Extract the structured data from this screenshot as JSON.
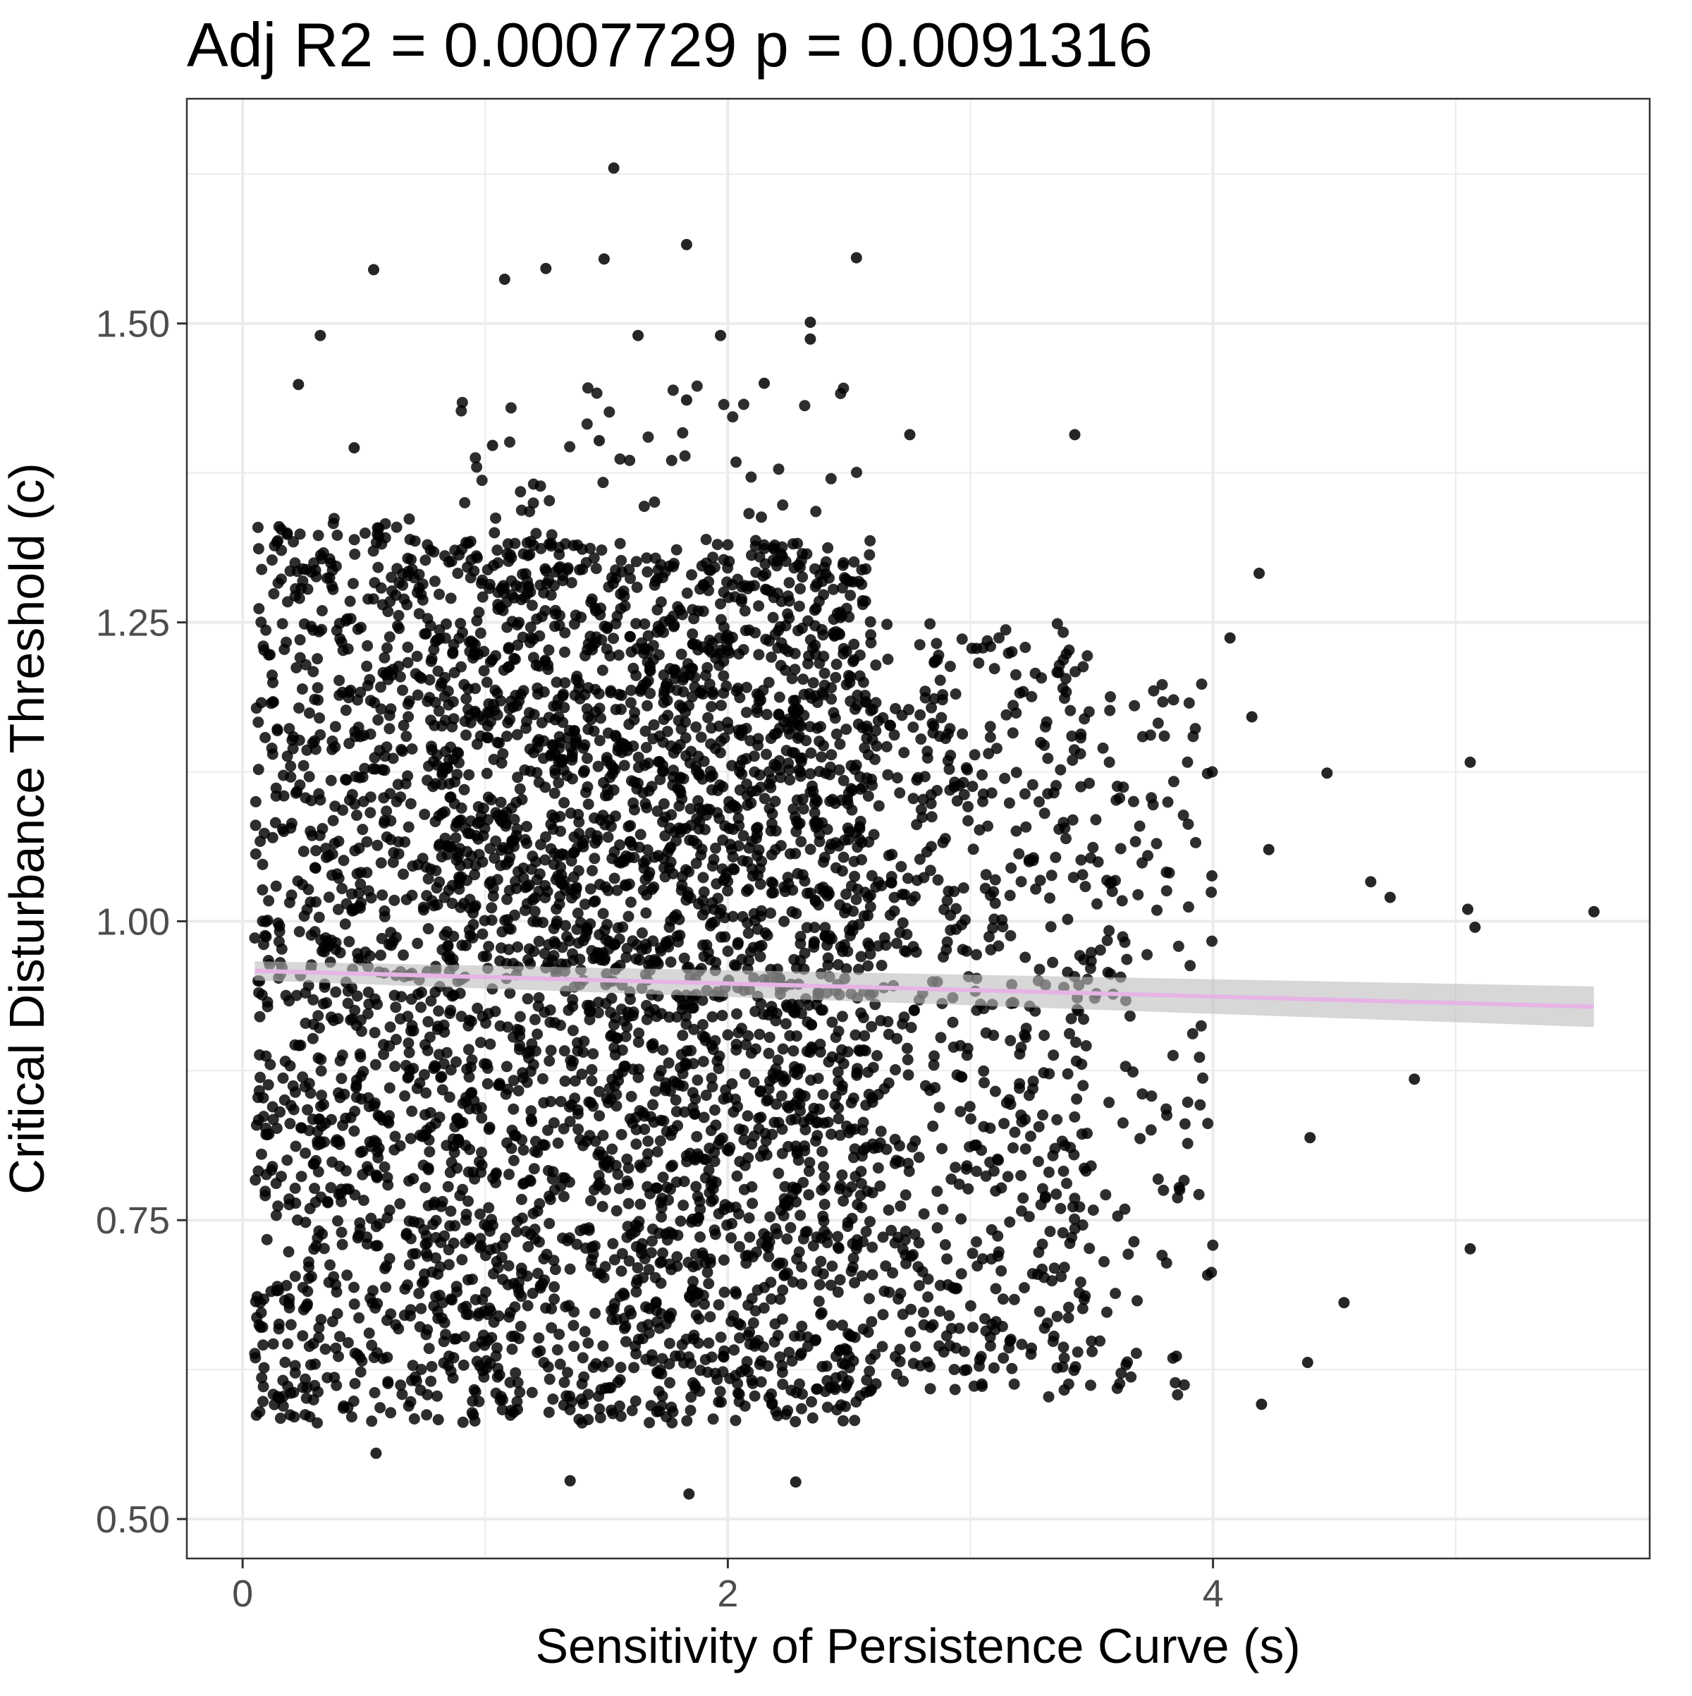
{
  "chart_data": {
    "type": "scatter",
    "title": "Adj R2 =  0.0007729  p = 0.0091316",
    "xlabel": "Sensitivity of Persistence Curve (s)",
    "ylabel": "Critical Disturbance Threshold (c)",
    "xlim": [
      -0.23,
      5.8
    ],
    "ylim": [
      0.467,
      1.688
    ],
    "x_ticks": [
      0,
      2,
      4
    ],
    "x_tick_labels": [
      "0",
      "2",
      "4"
    ],
    "y_ticks": [
      0.5,
      0.75,
      1.0,
      1.25,
      1.5
    ],
    "y_tick_labels": [
      "0.50",
      "0.75",
      "1.00",
      "1.25",
      "1.50"
    ],
    "grid": true,
    "legend": "none",
    "colors": {
      "points": "#000000",
      "fit_line": "#e7b3e6",
      "confidence_band": "#bdbdbd",
      "grid": "#ebebeb",
      "panel_border": "#333333"
    },
    "fit_line": {
      "x": [
        0.05,
        5.57
      ],
      "y": [
        0.9585,
        0.9285
      ],
      "ci_half_width_left": 0.008,
      "ci_half_width_right": 0.017
    },
    "highlighted_points": [
      {
        "x": 1.53,
        "y": 1.63
      },
      {
        "x": 1.83,
        "y": 1.566
      },
      {
        "x": 0.54,
        "y": 1.545
      },
      {
        "x": 1.25,
        "y": 1.546
      },
      {
        "x": 1.49,
        "y": 1.554
      },
      {
        "x": 2.53,
        "y": 1.555
      },
      {
        "x": 1.08,
        "y": 1.537
      },
      {
        "x": 2.34,
        "y": 1.501
      },
      {
        "x": 2.34,
        "y": 1.487
      },
      {
        "x": 1.63,
        "y": 1.49
      },
      {
        "x": 1.97,
        "y": 1.49
      },
      {
        "x": 0.32,
        "y": 1.49
      },
      {
        "x": 0.23,
        "y": 1.449
      },
      {
        "x": 2.15,
        "y": 1.45
      },
      {
        "x": 1.83,
        "y": 1.436
      },
      {
        "x": 4.19,
        "y": 1.291
      },
      {
        "x": 4.07,
        "y": 1.237
      },
      {
        "x": 5.06,
        "y": 1.133
      },
      {
        "x": 5.05,
        "y": 1.01
      },
      {
        "x": 5.57,
        "y": 1.008
      },
      {
        "x": 5.08,
        "y": 0.995
      },
      {
        "x": 4.83,
        "y": 0.868
      },
      {
        "x": 5.06,
        "y": 0.726
      },
      {
        "x": 4.54,
        "y": 0.681
      },
      {
        "x": 4.4,
        "y": 0.819
      },
      {
        "x": 4.39,
        "y": 0.631
      },
      {
        "x": 4.2,
        "y": 0.596
      },
      {
        "x": 1.84,
        "y": 0.521
      },
      {
        "x": 2.28,
        "y": 0.531
      },
      {
        "x": 1.35,
        "y": 0.532
      },
      {
        "x": 0.55,
        "y": 0.555
      },
      {
        "x": 0.06,
        "y": 0.686
      },
      {
        "x": 0.07,
        "y": 0.95
      },
      {
        "x": 0.15,
        "y": 1.33
      },
      {
        "x": 3.43,
        "y": 1.407
      },
      {
        "x": 2.75,
        "y": 1.407
      },
      {
        "x": 1.47,
        "y": 1.402
      },
      {
        "x": 1.03,
        "y": 1.398
      },
      {
        "x": 0.46,
        "y": 1.396
      },
      {
        "x": 4.65,
        "y": 1.033
      },
      {
        "x": 4.73,
        "y": 1.02
      },
      {
        "x": 4.23,
        "y": 1.06
      },
      {
        "x": 4.47,
        "y": 1.124
      },
      {
        "x": 4.16,
        "y": 1.171
      }
    ],
    "density_regions": [
      {
        "x": [
          0.05,
          0.75
        ],
        "y": [
          0.58,
          1.34
        ],
        "n": 850
      },
      {
        "x": [
          0.75,
          2.6
        ],
        "y": [
          0.97,
          1.32
        ],
        "n": 1600
      },
      {
        "x": [
          0.75,
          2.6
        ],
        "y": [
          0.58,
          0.97
        ],
        "n": 1450
      },
      {
        "x": [
          2.6,
          3.5
        ],
        "y": [
          0.6,
          1.25
        ],
        "n": 600
      },
      {
        "x": [
          3.5,
          4.0
        ],
        "y": [
          0.6,
          1.2
        ],
        "n": 130
      },
      {
        "x": [
          0.9,
          2.6
        ],
        "y": [
          1.32,
          1.45
        ],
        "n": 50
      }
    ]
  }
}
